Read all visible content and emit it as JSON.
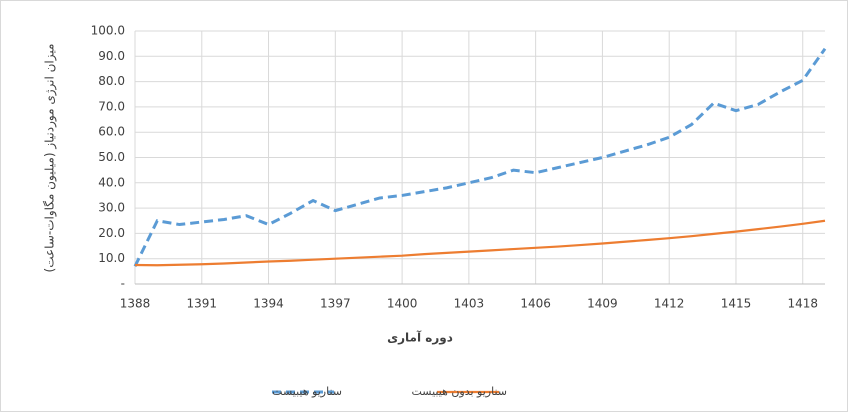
{
  "chart_data": {
    "type": "line",
    "y_label": "میزان انرژی موردنیاز (میلیون مگاوات-ساعت)",
    "x_label": "دوره آماری",
    "x": [
      1388,
      1389,
      1390,
      1391,
      1392,
      1393,
      1394,
      1395,
      1396,
      1397,
      1398,
      1399,
      1400,
      1401,
      1402,
      1403,
      1404,
      1405,
      1406,
      1407,
      1408,
      1409,
      1410,
      1411,
      1412,
      1413,
      1414,
      1415,
      1416,
      1417,
      1418,
      1419
    ],
    "series": [
      {
        "name": "سناریو هیبیست",
        "color": "#5b9bd5",
        "dashed": true,
        "values": [
          7,
          25,
          23.5,
          24.5,
          25.5,
          27,
          23.5,
          28,
          33,
          29,
          31.5,
          34,
          35,
          36.5,
          38,
          40,
          42,
          45,
          44,
          46,
          48,
          50,
          52.5,
          55,
          58,
          63,
          71.5,
          68.5,
          71,
          76,
          80.5,
          93
        ]
      },
      {
        "name": "سناریو بدون هیبیست",
        "color": "#ed7d31",
        "dashed": false,
        "values": [
          7.5,
          7.4,
          7.6,
          7.8,
          8.1,
          8.5,
          8.9,
          9.2,
          9.6,
          10,
          10.4,
          10.8,
          11.2,
          11.8,
          12.3,
          12.8,
          13.3,
          13.8,
          14.3,
          14.8,
          15.4,
          16,
          16.7,
          17.4,
          18.1,
          18.9,
          19.8,
          20.7,
          21.7,
          22.7,
          23.8,
          25
        ]
      }
    ],
    "xlim": [
      1388,
      1419
    ],
    "xticks": [
      1388,
      1391,
      1394,
      1397,
      1400,
      1403,
      1406,
      1409,
      1412,
      1415,
      1418
    ],
    "ylim": [
      0,
      100
    ],
    "yticks": [
      {
        "value": 0,
        "label": "-"
      },
      {
        "value": 10,
        "label": "10.0"
      },
      {
        "value": 20,
        "label": "20.0"
      },
      {
        "value": 30,
        "label": "30.0"
      },
      {
        "value": 40,
        "label": "40.0"
      },
      {
        "value": 50,
        "label": "50.0"
      },
      {
        "value": 60,
        "label": "60.0"
      },
      {
        "value": 70,
        "label": "70.0"
      },
      {
        "value": 80,
        "label": "80.0"
      },
      {
        "value": 90,
        "label": "90.0"
      },
      {
        "value": 100,
        "label": "100.0"
      }
    ],
    "grid": true,
    "legend": "bottom"
  }
}
